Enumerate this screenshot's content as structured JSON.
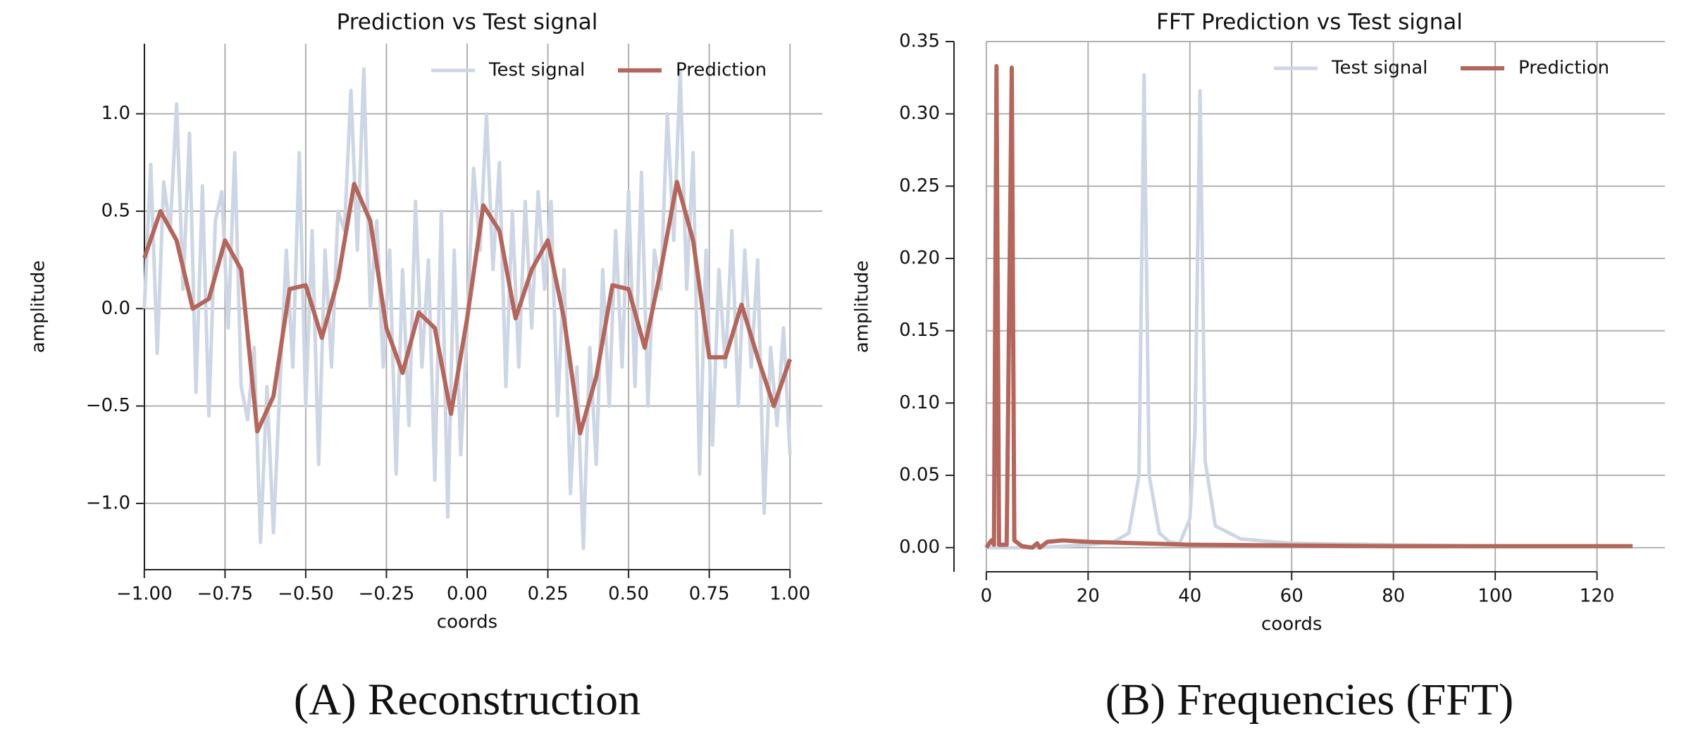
{
  "chart_data": [
    {
      "type": "line",
      "title": "Prediction vs Test signal",
      "xlabel": "coords",
      "ylabel": "amplitude",
      "caption": "(A) Reconstruction",
      "xlim": [
        -1.1,
        1.1
      ],
      "ylim": [
        -1.34,
        1.36
      ],
      "grid": true,
      "legend": "upper right",
      "xticks": [
        {
          "value": -1,
          "label": "−1.00"
        },
        {
          "value": -0.75,
          "label": "−0.75"
        },
        {
          "value": -0.5,
          "label": "−0.50"
        },
        {
          "value": -0.25,
          "label": "−0.25"
        },
        {
          "value": 0,
          "label": "0.00"
        },
        {
          "value": 0.25,
          "label": "0.25"
        },
        {
          "value": 0.5,
          "label": "0.50"
        },
        {
          "value": 0.75,
          "label": "0.75"
        },
        {
          "value": 1,
          "label": "1.00"
        }
      ],
      "yticks": [
        {
          "value": -1,
          "label": "−1.0"
        },
        {
          "value": -0.5,
          "label": "−0.5"
        },
        {
          "value": 0,
          "label": "0.0"
        },
        {
          "value": 0.5,
          "label": "0.5"
        },
        {
          "value": 1,
          "label": "1.0"
        }
      ],
      "series": [
        {
          "name": "Test signal",
          "color": "#cdd6e4",
          "x": [
            -1.0,
            -0.98,
            -0.96,
            -0.94,
            -0.92,
            -0.9,
            -0.88,
            -0.86,
            -0.84,
            -0.82,
            -0.8,
            -0.78,
            -0.76,
            -0.74,
            -0.72,
            -0.7,
            -0.68,
            -0.66,
            -0.64,
            -0.62,
            -0.6,
            -0.58,
            -0.56,
            -0.54,
            -0.52,
            -0.5,
            -0.48,
            -0.46,
            -0.44,
            -0.42,
            -0.4,
            -0.38,
            -0.36,
            -0.34,
            -0.32,
            -0.3,
            -0.28,
            -0.26,
            -0.24,
            -0.22,
            -0.2,
            -0.18,
            -0.16,
            -0.14,
            -0.12,
            -0.1,
            -0.08,
            -0.06,
            -0.04,
            -0.02,
            0.0,
            0.02,
            0.04,
            0.06,
            0.08,
            0.1,
            0.12,
            0.14,
            0.16,
            0.18,
            0.2,
            0.22,
            0.24,
            0.26,
            0.28,
            0.3,
            0.32,
            0.34,
            0.36,
            0.38,
            0.4,
            0.42,
            0.44,
            0.46,
            0.48,
            0.5,
            0.52,
            0.54,
            0.56,
            0.58,
            0.6,
            0.62,
            0.64,
            0.66,
            0.68,
            0.7,
            0.72,
            0.74,
            0.76,
            0.78,
            0.8,
            0.82,
            0.84,
            0.86,
            0.88,
            0.9,
            0.92,
            0.94,
            0.96,
            0.98,
            1.0
          ],
          "values": [
            0.0,
            0.74,
            -0.23,
            0.65,
            0.4,
            1.05,
            0.1,
            0.9,
            -0.43,
            0.63,
            -0.55,
            0.45,
            0.6,
            -0.1,
            0.8,
            -0.4,
            -0.57,
            -0.2,
            -1.2,
            -0.4,
            -1.15,
            -0.4,
            0.3,
            -0.3,
            0.8,
            -0.5,
            0.4,
            -0.8,
            0.3,
            -0.3,
            0.5,
            0.4,
            1.12,
            0.3,
            1.23,
            0.0,
            0.45,
            -0.3,
            0.3,
            -0.85,
            0.2,
            -0.6,
            0.55,
            -0.3,
            0.25,
            -0.88,
            0.5,
            -1.07,
            0.3,
            -0.75,
            -0.1,
            0.72,
            0.3,
            1.0,
            0.2,
            0.75,
            -0.4,
            0.5,
            -0.3,
            0.55,
            -0.1,
            0.6,
            0.1,
            0.55,
            -0.55,
            0.2,
            -0.95,
            -0.3,
            -1.23,
            -0.2,
            -0.8,
            0.2,
            -0.5,
            0.4,
            -0.3,
            0.6,
            -0.4,
            0.7,
            -0.5,
            0.3,
            0.1,
            1.0,
            0.35,
            1.22,
            0.1,
            0.8,
            -0.85,
            0.3,
            -0.7,
            0.2,
            -0.3,
            0.4,
            -0.5,
            0.3,
            -0.3,
            0.25,
            -1.05,
            -0.2,
            -0.6,
            -0.1,
            -0.75
          ]
        },
        {
          "name": "Prediction",
          "color": "#b5655a",
          "x": [
            -1.0,
            -0.95,
            -0.9,
            -0.85,
            -0.8,
            -0.75,
            -0.7,
            -0.65,
            -0.6,
            -0.55,
            -0.5,
            -0.45,
            -0.4,
            -0.35,
            -0.3,
            -0.25,
            -0.2,
            -0.15,
            -0.1,
            -0.05,
            0.0,
            0.05,
            0.1,
            0.15,
            0.2,
            0.25,
            0.3,
            0.35,
            0.4,
            0.45,
            0.5,
            0.55,
            0.6,
            0.65,
            0.7,
            0.75,
            0.8,
            0.85,
            0.9,
            0.95,
            1.0
          ],
          "values": [
            0.26,
            0.5,
            0.35,
            0.0,
            0.05,
            0.35,
            0.2,
            -0.63,
            -0.45,
            0.1,
            0.12,
            -0.15,
            0.15,
            0.64,
            0.45,
            -0.1,
            -0.33,
            -0.02,
            -0.1,
            -0.54,
            -0.05,
            0.53,
            0.4,
            -0.05,
            0.2,
            0.35,
            -0.05,
            -0.64,
            -0.35,
            0.12,
            0.1,
            -0.2,
            0.2,
            0.65,
            0.35,
            -0.25,
            -0.25,
            0.02,
            -0.25,
            -0.5,
            -0.26
          ]
        }
      ]
    },
    {
      "type": "line",
      "title": "FFT Prediction vs Test signal",
      "xlabel": "coords",
      "ylabel": "amplitude",
      "caption": "(B) Frequencies (FFT)",
      "xlim": [
        -6.35,
        133.35
      ],
      "ylim": [
        -0.0167,
        0.35
      ],
      "grid": true,
      "legend": "upper right",
      "xticks": [
        0,
        20,
        40,
        60,
        80,
        100,
        120
      ],
      "yticks": [
        {
          "value": 0,
          "label": "0.00"
        },
        {
          "value": 0.05,
          "label": "0.05"
        },
        {
          "value": 0.1,
          "label": "0.10"
        },
        {
          "value": 0.15,
          "label": "0.15"
        },
        {
          "value": 0.2,
          "label": "0.20"
        },
        {
          "value": 0.25,
          "label": "0.25"
        },
        {
          "value": 0.3,
          "label": "0.30"
        },
        {
          "value": 0.35,
          "label": "0.35"
        }
      ],
      "series": [
        {
          "name": "Test signal",
          "color": "#cdd6e4",
          "x": [
            0,
            5,
            10,
            20,
            25,
            28,
            30,
            31,
            32,
            34,
            36,
            38,
            40,
            41,
            42,
            43,
            45,
            50,
            60,
            80,
            100,
            127
          ],
          "values": [
            0,
            0,
            0,
            0.002,
            0.004,
            0.01,
            0.05,
            0.327,
            0.05,
            0.01,
            0.004,
            0.003,
            0.02,
            0.08,
            0.316,
            0.06,
            0.015,
            0.006,
            0.003,
            0.002,
            0.001,
            0.001
          ]
        },
        {
          "name": "Prediction",
          "color": "#b5655a",
          "x": [
            0,
            1,
            1.5,
            2,
            2.5,
            4,
            5,
            5.5,
            7,
            9,
            10,
            10.5,
            12,
            15,
            20,
            40,
            80,
            127
          ],
          "values": [
            0,
            0.005,
            0.002,
            0.333,
            0.002,
            0.002,
            0.332,
            0.005,
            0.001,
            0,
            0.003,
            0,
            0.004,
            0.005,
            0.004,
            0.002,
            0.001,
            0.001
          ]
        }
      ]
    }
  ]
}
